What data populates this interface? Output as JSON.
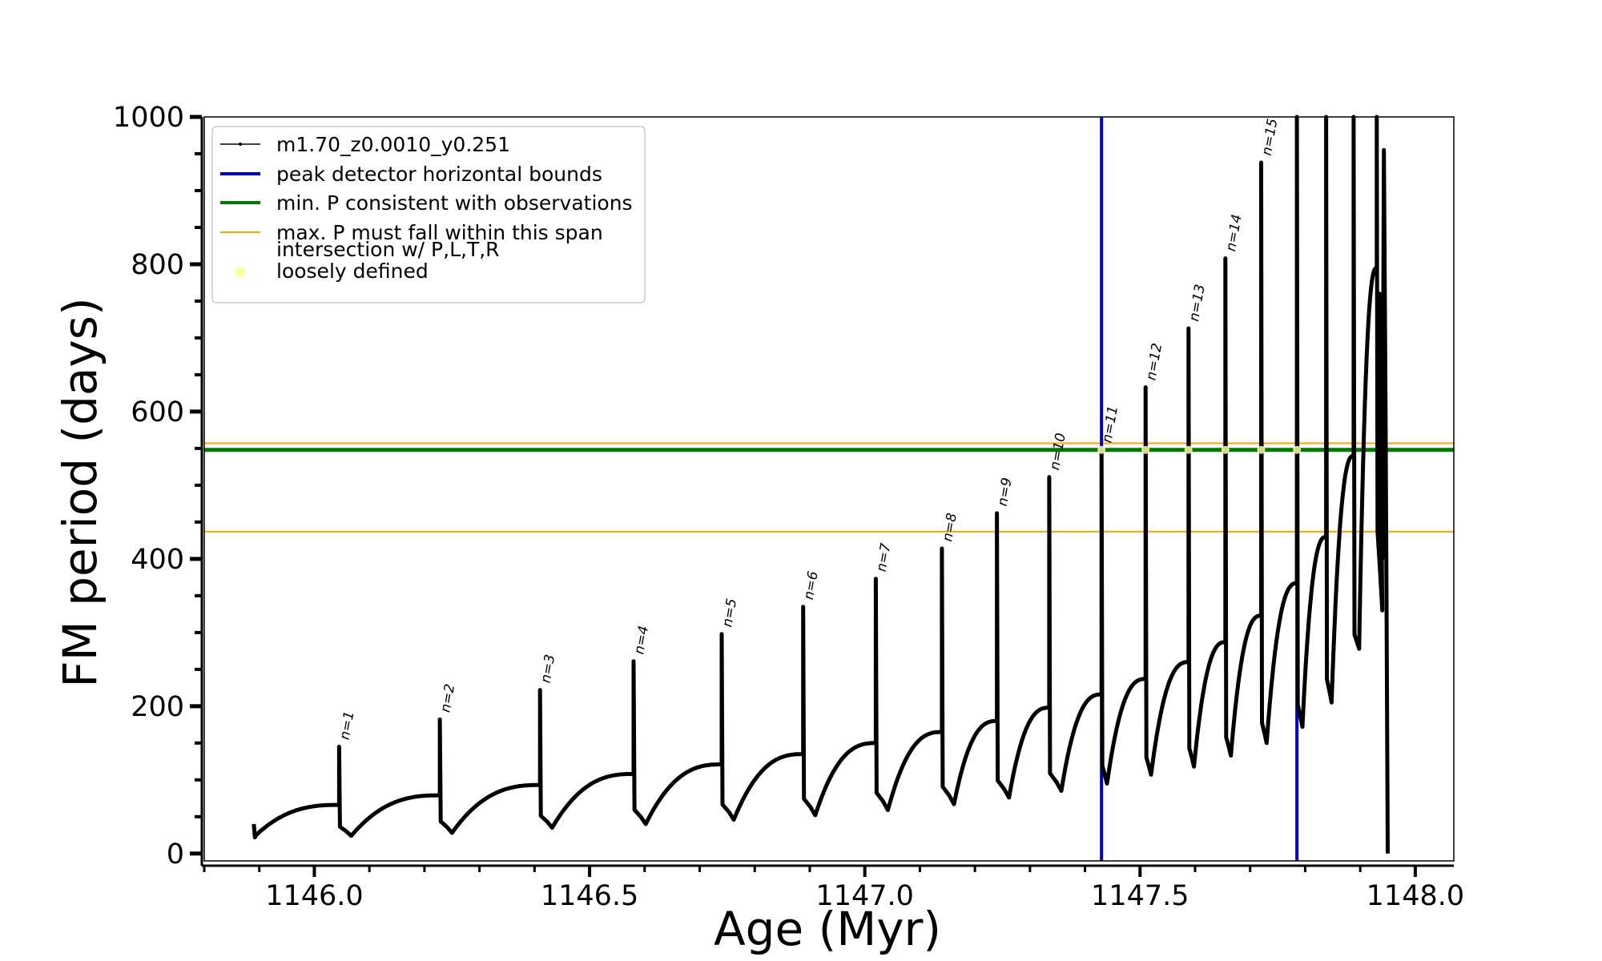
{
  "chart_data": {
    "type": "line",
    "title": "",
    "xlabel": "Age (Myr)",
    "ylabel": "FM period (days)",
    "xlim": [
      1145.8,
      1148.07
    ],
    "ylim": [
      -10,
      1000
    ],
    "xticks": [
      1146.0,
      1146.5,
      1147.0,
      1147.5,
      1148.0
    ],
    "xtick_labels": [
      "1146.0",
      "1146.5",
      "1147.0",
      "1147.5",
      "1148.0"
    ],
    "yticks": [
      0,
      200,
      400,
      600,
      800,
      1000
    ],
    "ytick_labels": [
      "0",
      "200",
      "400",
      "600",
      "800",
      "1000"
    ],
    "grid": false,
    "legend_position": "top-left",
    "legend": [
      {
        "label": "m1.70_z0.0010_y0.251",
        "style": "line-marker",
        "color": "#000000"
      },
      {
        "label": "peak detector horizontal bounds",
        "style": "line",
        "color": "#0000cc"
      },
      {
        "label": "min. P consistent with observations",
        "style": "line",
        "color": "#007a00"
      },
      {
        "label": "max. P must fall within this span",
        "style": "thin-line",
        "color": "#ffa500"
      },
      {
        "label": "intersection w/ P,L,T,R\nloosely defined",
        "style": "dot",
        "color": "#ffffaa"
      }
    ],
    "series": [
      {
        "name": "m1.70_z0.0010_y0.251",
        "color": "#000000",
        "start": {
          "age": 1145.89,
          "period": 22
        },
        "pulses": [
          {
            "n": "n=1",
            "age": 1146.045,
            "pre_peak": 66,
            "peak": 145,
            "trough": 24
          },
          {
            "n": "n=2",
            "age": 1146.228,
            "pre_peak": 79,
            "peak": 182,
            "trough": 28
          },
          {
            "n": "n=3",
            "age": 1146.41,
            "pre_peak": 93,
            "peak": 222,
            "trough": 35
          },
          {
            "n": "n=4",
            "age": 1146.58,
            "pre_peak": 108,
            "peak": 261,
            "trough": 40
          },
          {
            "n": "n=5",
            "age": 1146.74,
            "pre_peak": 121,
            "peak": 298,
            "trough": 46
          },
          {
            "n": "n=6",
            "age": 1146.888,
            "pre_peak": 135,
            "peak": 335,
            "trough": 52
          },
          {
            "n": "n=7",
            "age": 1147.02,
            "pre_peak": 150,
            "peak": 373,
            "trough": 59
          },
          {
            "n": "n=8",
            "age": 1147.14,
            "pre_peak": 165,
            "peak": 414,
            "trough": 67
          },
          {
            "n": "n=9",
            "age": 1147.24,
            "pre_peak": 180,
            "peak": 462,
            "trough": 76
          },
          {
            "n": "n=10",
            "age": 1147.335,
            "pre_peak": 198,
            "peak": 511,
            "trough": 85
          },
          {
            "n": "n=11",
            "age": 1147.43,
            "pre_peak": 216,
            "peak": 548,
            "trough": 95
          },
          {
            "n": "n=12",
            "age": 1147.51,
            "pre_peak": 237,
            "peak": 633,
            "trough": 107
          },
          {
            "n": "n=13",
            "age": 1147.588,
            "pre_peak": 260,
            "peak": 713,
            "trough": 118
          },
          {
            "n": "n=14",
            "age": 1147.655,
            "pre_peak": 287,
            "peak": 808,
            "trough": 133
          },
          {
            "n": "n=15",
            "age": 1147.72,
            "pre_peak": 323,
            "peak": 938,
            "trough": 150
          },
          {
            "n": "",
            "age": 1147.785,
            "pre_peak": 367,
            "peak": 1000,
            "trough": 172
          },
          {
            "n": "",
            "age": 1147.838,
            "pre_peak": 430,
            "peak": 1000,
            "trough": 205
          },
          {
            "n": "",
            "age": 1147.888,
            "pre_peak": 540,
            "peak": 1000,
            "trough": 278
          },
          {
            "n": "",
            "age": 1147.93,
            "pre_peak": 795,
            "peak": 1000,
            "trough": 330
          }
        ],
        "end": [
          {
            "age": 1147.935,
            "period": 760
          },
          {
            "age": 1147.94,
            "period": 400
          },
          {
            "age": 1147.943,
            "period": 955
          },
          {
            "age": 1147.946,
            "period": 600
          },
          {
            "age": 1147.948,
            "period": 300
          },
          {
            "age": 1147.95,
            "period": 0
          }
        ]
      }
    ],
    "reference_lines": {
      "vertical_blue": [
        1147.43,
        1147.785
      ],
      "horizontal_green": [
        548
      ],
      "horizontal_orange": [
        437,
        557
      ]
    },
    "intersections": {
      "color": "#ffffaa",
      "points": [
        {
          "age": 1147.43,
          "period": 548
        },
        {
          "age": 1147.51,
          "period": 548
        },
        {
          "age": 1147.588,
          "period": 548
        },
        {
          "age": 1147.655,
          "period": 548
        },
        {
          "age": 1147.72,
          "period": 548
        },
        {
          "age": 1147.785,
          "period": 548
        }
      ]
    }
  }
}
